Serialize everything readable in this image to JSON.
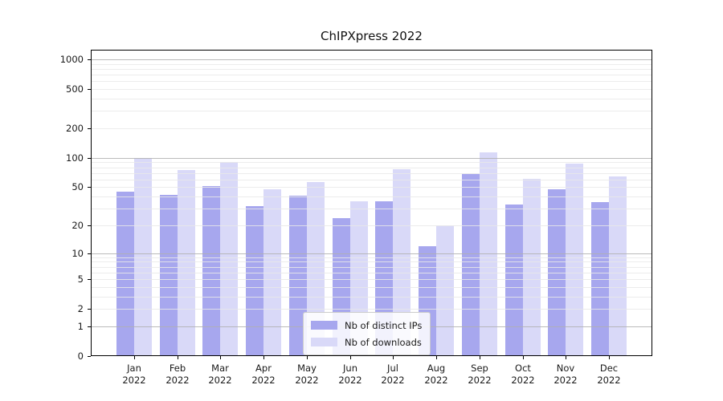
{
  "title": "ChIPXpress 2022",
  "chart_data": {
    "type": "bar",
    "title": "ChIPXpress 2022",
    "categories": [
      "Jan 2022",
      "Feb 2022",
      "Mar 2022",
      "Apr 2022",
      "May 2022",
      "Jun 2022",
      "Jul 2022",
      "Aug 2022",
      "Sep 2022",
      "Oct 2022",
      "Nov 2022",
      "Dec 2022"
    ],
    "series": [
      {
        "name": "Nb of distinct IPs",
        "color": "#a7a7ee",
        "values": [
          45,
          42,
          51,
          32,
          41,
          24,
          36,
          12,
          68,
          33,
          48,
          35
        ]
      },
      {
        "name": "Nb of downloads",
        "color": "#d9d9f8",
        "values": [
          100,
          75,
          90,
          48,
          56,
          36,
          76,
          20,
          114,
          61,
          87,
          65
        ]
      }
    ],
    "xlabel": "",
    "ylabel": "",
    "yscale": "log1p",
    "ylim": [
      0,
      1250
    ],
    "yticks": [
      0,
      1,
      2,
      5,
      10,
      20,
      50,
      100,
      200,
      500,
      1000
    ],
    "grid": "horizontal major and minor, drawn over bars",
    "legend_position": "lower center"
  },
  "colors": {
    "major_grid": "#b0b0b0",
    "minor_grid": "#e9e9e9",
    "axis": "#000000",
    "text": "#1a1a1a",
    "legend_border": "#cccccc"
  }
}
